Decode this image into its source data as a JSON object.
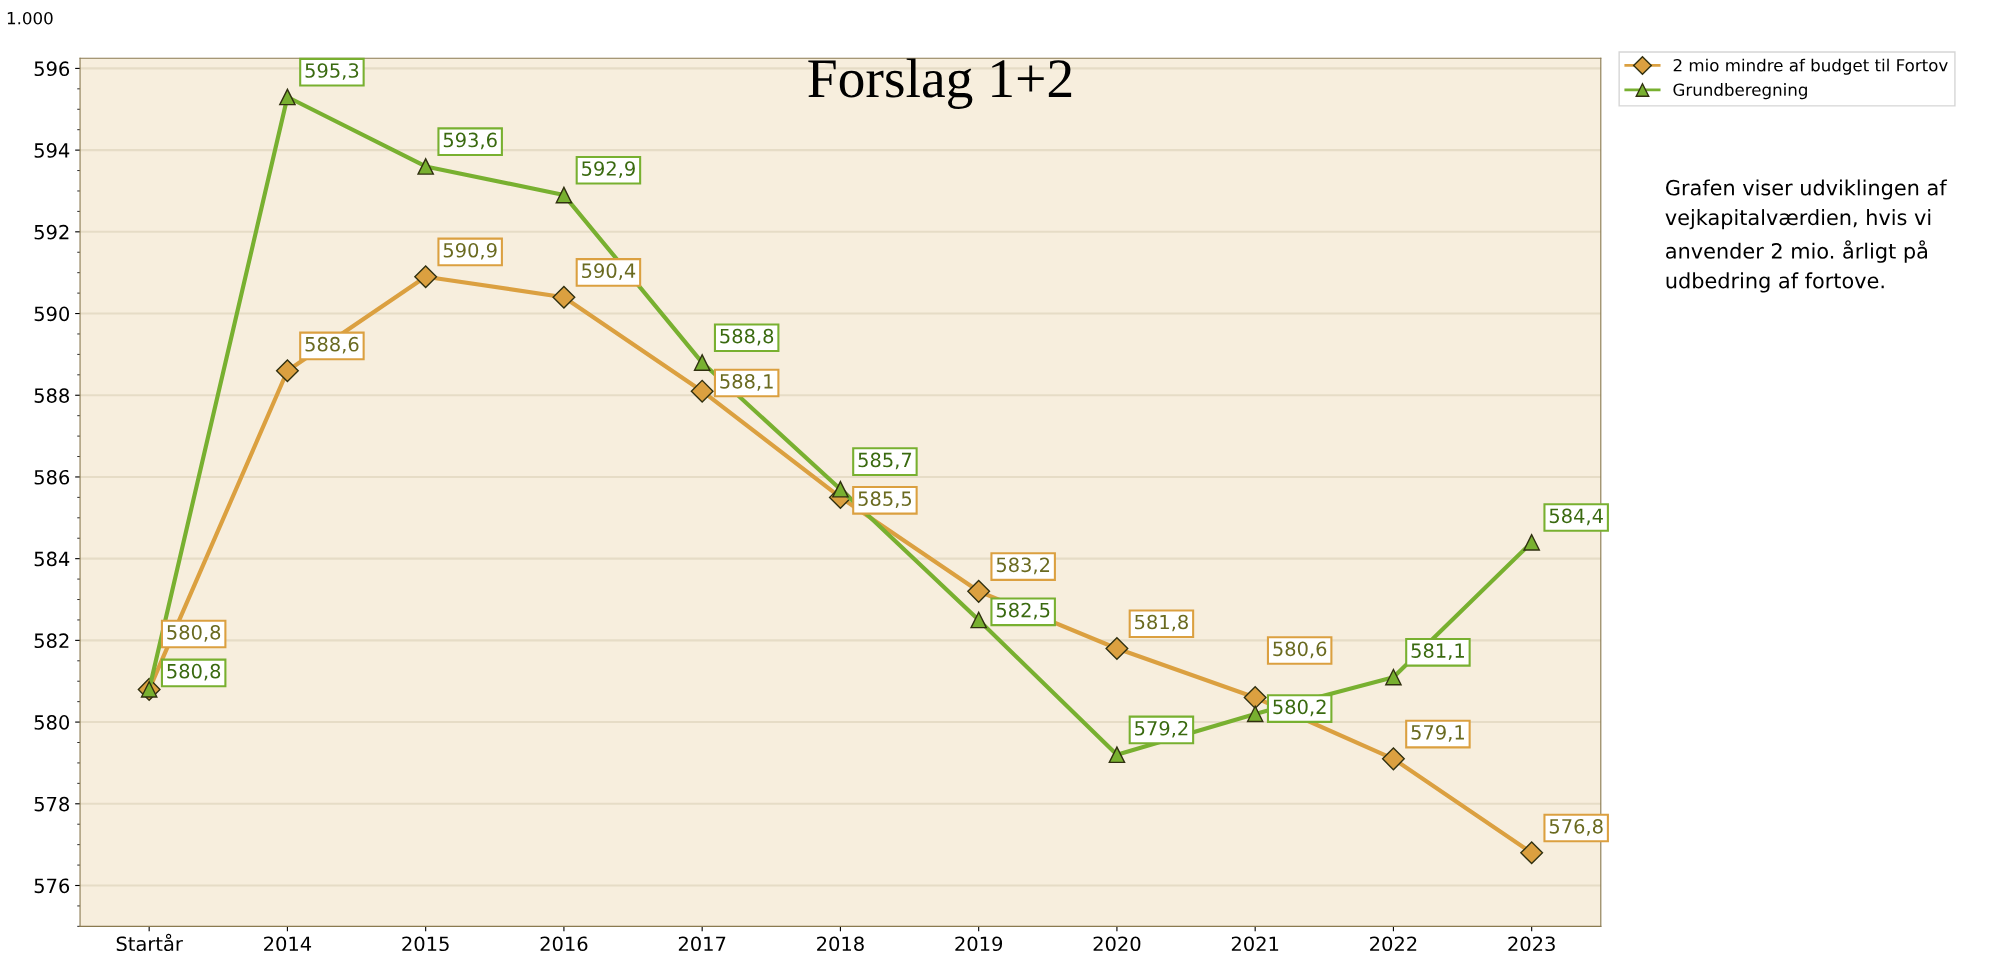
{
  "chart_data": {
    "type": "line",
    "title": "Forslag 1+2",
    "categories": [
      "Startår",
      "2014",
      "2015",
      "2016",
      "2017",
      "2018",
      "2019",
      "2020",
      "2021",
      "2022",
      "2023"
    ],
    "series": [
      {
        "name": "2 mio mindre af budget til Fortov",
        "color": "#dba040",
        "marker": "diamond",
        "values": [
          580.8,
          588.6,
          590.9,
          590.4,
          588.1,
          585.5,
          583.2,
          581.8,
          580.6,
          579.1,
          576.8
        ],
        "value_labels": [
          "580,8",
          "588,6",
          "590,9",
          "590,4",
          "588,1",
          "585,5",
          "583,2",
          "581,8",
          "580,6",
          "579,1",
          "576,8"
        ]
      },
      {
        "name": "Grundberegning",
        "color": "#78b030",
        "marker": "triangle",
        "values": [
          580.8,
          595.3,
          593.6,
          592.9,
          588.8,
          585.7,
          582.5,
          579.2,
          580.2,
          581.1,
          584.4
        ],
        "value_labels": [
          "580,8",
          "595,3",
          "593,6",
          "592,9",
          "588,8",
          "585,7",
          "582,5",
          "579,2",
          "580,2",
          "581,1",
          "584,4"
        ]
      }
    ],
    "ylim": [
      575,
      596.25
    ],
    "yticks": [
      576,
      578,
      580,
      582,
      584,
      586,
      588,
      590,
      592,
      594,
      596
    ],
    "grid": "y",
    "legend": "top right",
    "line_style": "solid",
    "annotations": [
      "1.000",
      "Grafen viser udviklingen af vejkapitalværdien, hvis vi anvender 2 mio. årligt på udbedring af fortove."
    ]
  }
}
